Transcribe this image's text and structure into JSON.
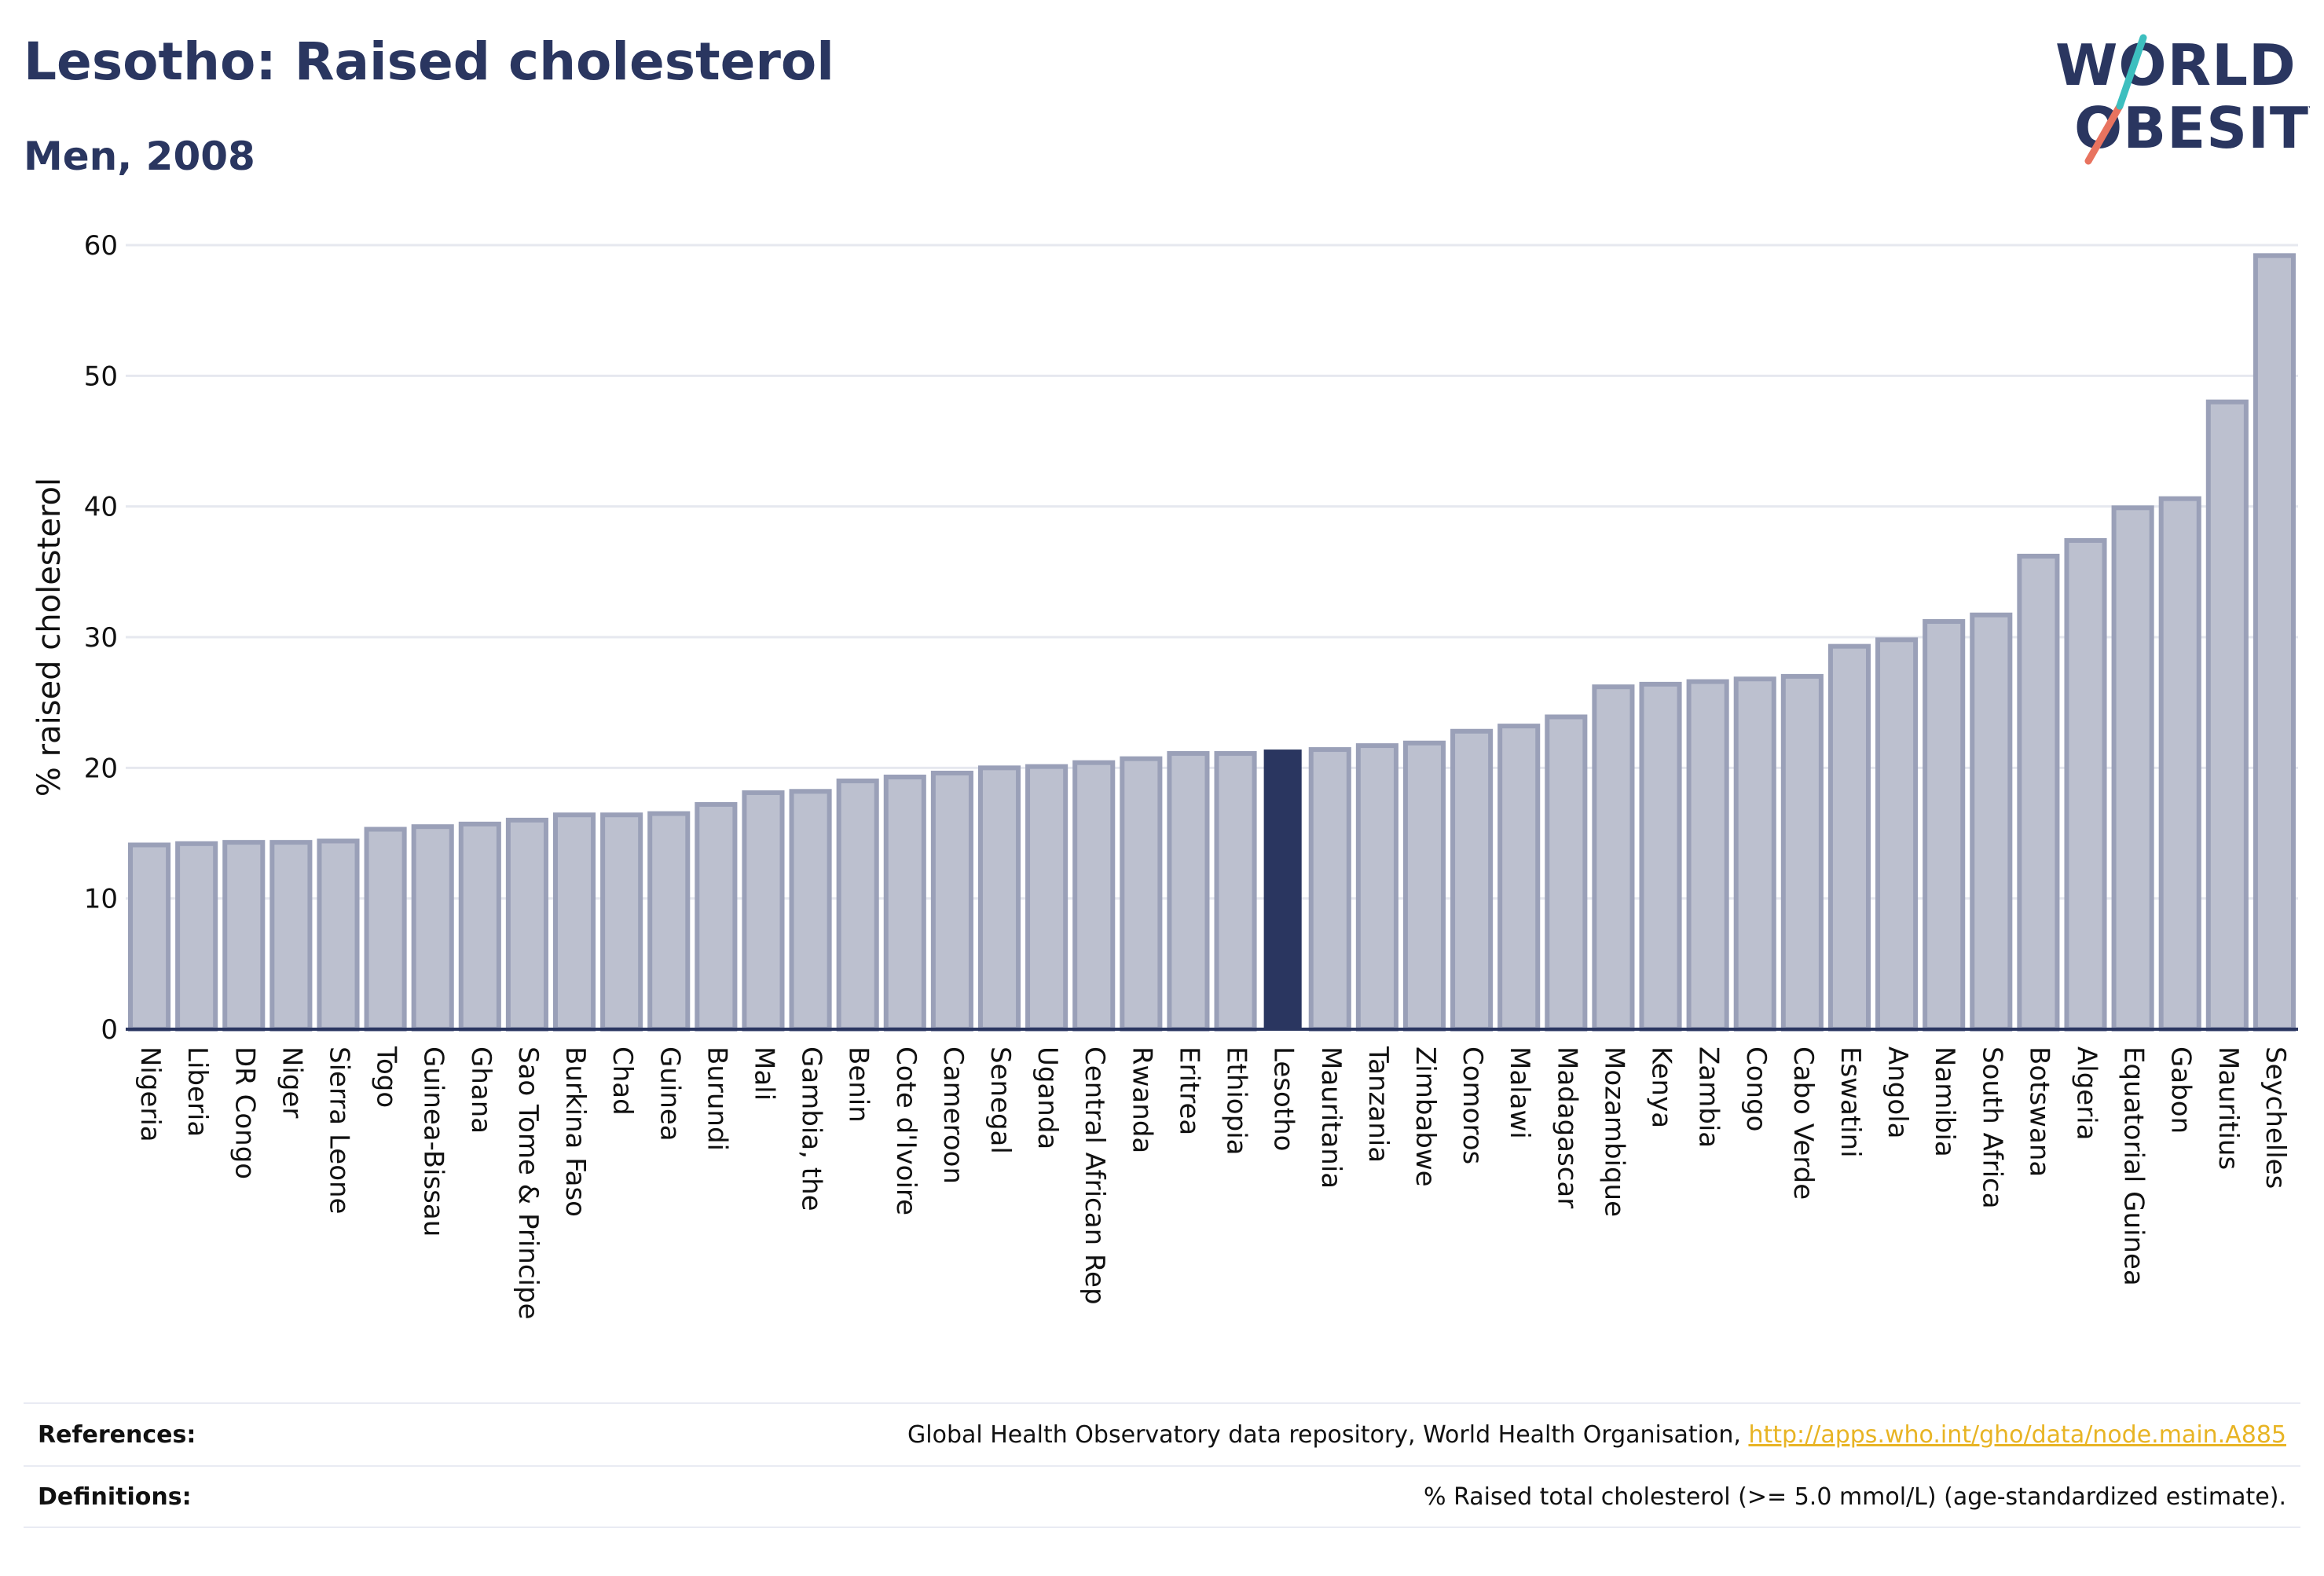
{
  "header": {
    "title": "Lesotho: Raised cholesterol",
    "subtitle": "Men, 2008"
  },
  "logo": {
    "line1": "WORLD",
    "line2": "OBESITY"
  },
  "colors": {
    "bar": "#bcc0cf",
    "bar_stroke": "#9aa0b8",
    "highlight": "#2a3660",
    "grid": "#e6e8ef",
    "axis": "#2a3660"
  },
  "chart_data": {
    "type": "bar",
    "ylabel": "% raised cholesterol",
    "ylim": [
      0,
      60
    ],
    "yticks": [
      0,
      10,
      20,
      30,
      40,
      50,
      60
    ],
    "grid": true,
    "highlight": "Lesotho",
    "categories": [
      "Nigeria",
      "Liberia",
      "DR Congo",
      "Niger",
      "Sierra Leone",
      "Togo",
      "Guinea-Bissau",
      "Ghana",
      "Sao Tome & Principe",
      "Burkina Faso",
      "Chad",
      "Guinea",
      "Burundi",
      "Mali",
      "Gambia, the",
      "Benin",
      "Cote d'Ivoire",
      "Cameroon",
      "Senegal",
      "Uganda",
      "Central African Rep",
      "Rwanda",
      "Eritrea",
      "Ethiopia",
      "Lesotho",
      "Mauritania",
      "Tanzania",
      "Zimbabwe",
      "Comoros",
      "Malawi",
      "Madagascar",
      "Mozambique",
      "Kenya",
      "Zambia",
      "Congo",
      "Cabo Verde",
      "Eswatini",
      "Angola",
      "Namibia",
      "South Africa",
      "Botswana",
      "Algeria",
      "Equatorial Guinea",
      "Gabon",
      "Mauritius",
      "Seychelles"
    ],
    "values": [
      14.1,
      14.2,
      14.3,
      14.3,
      14.4,
      15.3,
      15.5,
      15.7,
      16.0,
      16.4,
      16.4,
      16.5,
      17.2,
      18.1,
      18.2,
      19.0,
      19.3,
      19.6,
      20.0,
      20.1,
      20.4,
      20.7,
      21.1,
      21.1,
      21.4,
      21.4,
      21.7,
      21.9,
      22.8,
      23.2,
      23.9,
      26.2,
      26.4,
      26.6,
      26.8,
      27.0,
      29.3,
      29.8,
      31.2,
      31.7,
      36.2,
      37.4,
      39.9,
      40.6,
      48.0,
      59.2
    ]
  },
  "footer": {
    "references_label": "References:",
    "references_text": "Global Health Observatory data repository, World Health Organisation, ",
    "references_link": "http://apps.who.int/gho/data/node.main.A885",
    "definitions_label": "Definitions:",
    "definitions_text": "% Raised total cholesterol (>= 5.0 mmol/L) (age-standardized estimate)."
  }
}
